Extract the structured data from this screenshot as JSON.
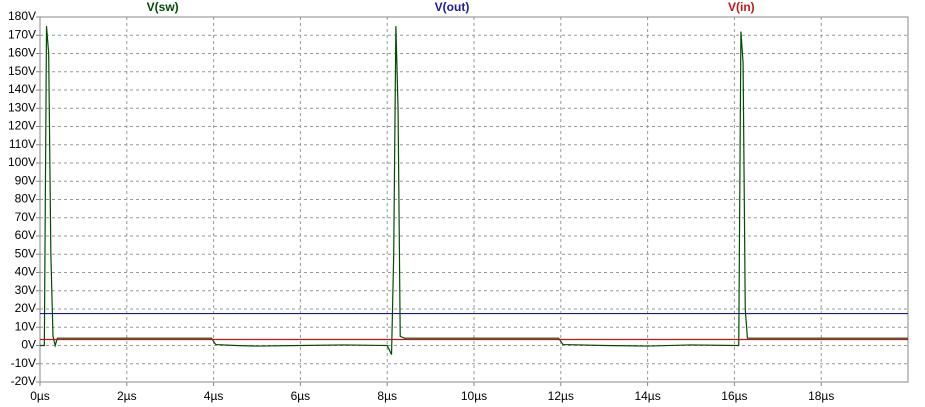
{
  "chart_data": {
    "type": "line",
    "grid": true,
    "xlim": [
      0,
      20
    ],
    "ylim": [
      -20,
      180
    ],
    "xticks": [
      {
        "value": 0,
        "label": "0µs"
      },
      {
        "value": 2,
        "label": "2µs"
      },
      {
        "value": 4,
        "label": "4µs"
      },
      {
        "value": 6,
        "label": "6µs"
      },
      {
        "value": 8,
        "label": "8µs"
      },
      {
        "value": 10,
        "label": "10µs"
      },
      {
        "value": 12,
        "label": "12µs"
      },
      {
        "value": 14,
        "label": "14µs"
      },
      {
        "value": 16,
        "label": "16µs"
      },
      {
        "value": 18,
        "label": "18µs"
      }
    ],
    "yticks": [
      {
        "value": -20,
        "label": "-20V"
      },
      {
        "value": -10,
        "label": "-10V"
      },
      {
        "value": 0,
        "label": "0V"
      },
      {
        "value": 10,
        "label": "10V"
      },
      {
        "value": 20,
        "label": "20V"
      },
      {
        "value": 30,
        "label": "30V"
      },
      {
        "value": 40,
        "label": "40V"
      },
      {
        "value": 50,
        "label": "50V"
      },
      {
        "value": 60,
        "label": "60V"
      },
      {
        "value": 70,
        "label": "70V"
      },
      {
        "value": 80,
        "label": "80V"
      },
      {
        "value": 90,
        "label": "90V"
      },
      {
        "value": 100,
        "label": "100V"
      },
      {
        "value": 110,
        "label": "110V"
      },
      {
        "value": 120,
        "label": "120V"
      },
      {
        "value": 130,
        "label": "130V"
      },
      {
        "value": 140,
        "label": "140V"
      },
      {
        "value": 150,
        "label": "150V"
      },
      {
        "value": 160,
        "label": "160V"
      },
      {
        "value": 170,
        "label": "170V"
      },
      {
        "value": 180,
        "label": "180V"
      }
    ],
    "series": [
      {
        "name": "V(sw)",
        "color": "#004d00",
        "x": [
          0,
          0.1,
          0.15,
          0.2,
          0.25,
          0.3,
          0.35,
          0.4,
          3.95,
          4.05,
          4.5,
          5,
          6,
          7,
          8,
          8.1,
          8.15,
          8.2,
          8.25,
          8.3,
          8.4,
          11.95,
          12.05,
          13,
          14,
          15,
          16,
          16.1,
          16.15,
          16.2,
          16.25,
          16.3,
          20
        ],
        "values": [
          0,
          0,
          175,
          160,
          50,
          5,
          0,
          4,
          4,
          0.5,
          0,
          -0.3,
          0,
          0.3,
          0,
          -5,
          50,
          175,
          130,
          5,
          4,
          4,
          0.5,
          0,
          -0.3,
          0.3,
          0,
          0,
          172,
          155,
          20,
          4,
          4
        ]
      },
      {
        "name": "V(out)",
        "color": "#1a1aa0",
        "x": [
          0,
          20
        ],
        "values": [
          17.5,
          17.5
        ]
      },
      {
        "name": "V(in)",
        "color": "#c01818",
        "x": [
          0,
          20
        ],
        "values": [
          3.3,
          3.3
        ]
      }
    ]
  }
}
